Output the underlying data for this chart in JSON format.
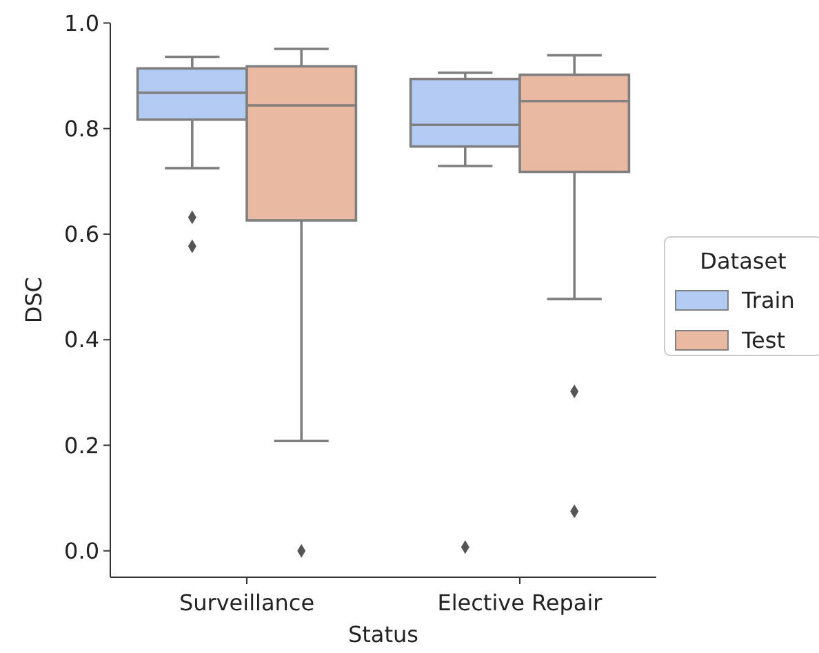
{
  "chart_data": {
    "type": "box",
    "xlabel": "Status",
    "ylabel": "DSC",
    "legend_title": "Dataset",
    "legend": "right",
    "grid": false,
    "marker": "diamond",
    "categories": [
      "Surveillance",
      "Elective Repair"
    ],
    "ylim": [
      -0.05,
      1.0
    ],
    "yticks": [
      {
        "value": 0.0,
        "label": "0.0"
      },
      {
        "value": 0.2,
        "label": "0.2"
      },
      {
        "value": 0.4,
        "label": "0.4"
      },
      {
        "value": 0.6,
        "label": "0.6"
      },
      {
        "value": 0.8,
        "label": "0.8"
      },
      {
        "value": 1.0,
        "label": "1.0"
      }
    ],
    "series": [
      {
        "name": "Train",
        "color": "#b3cbf2",
        "boxes": [
          {
            "low": 0.725,
            "q1": 0.817,
            "median": 0.868,
            "q3": 0.914,
            "high": 0.936,
            "outliers": [
              0.632,
              0.577
            ]
          },
          {
            "low": 0.729,
            "q1": 0.766,
            "median": 0.807,
            "q3": 0.894,
            "high": 0.906,
            "outliers": [
              0.007
            ]
          }
        ]
      },
      {
        "name": "Test",
        "color": "#eab9a2",
        "boxes": [
          {
            "low": 0.208,
            "q1": 0.626,
            "median": 0.844,
            "q3": 0.918,
            "high": 0.951,
            "outliers": [
              0.0
            ]
          },
          {
            "low": 0.477,
            "q1": 0.718,
            "median": 0.852,
            "q3": 0.902,
            "high": 0.939,
            "outliers": [
              0.302,
              0.075
            ]
          }
        ]
      }
    ]
  }
}
